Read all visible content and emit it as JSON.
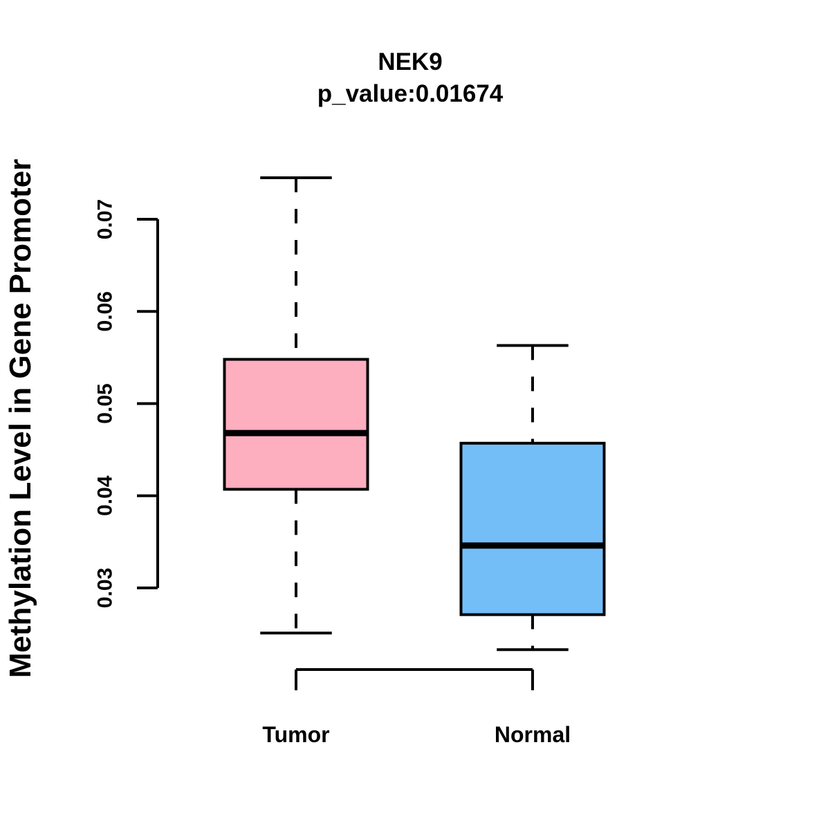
{
  "figure": {
    "background": "#ffffff",
    "foreground": "#000000"
  },
  "chart_data": {
    "type": "boxplot",
    "title": "NEK9",
    "subtitle": "p_value:0.01674",
    "p_value": 0.01674,
    "xlabel": "",
    "ylabel": "Methylation Level in Gene Promoter",
    "categories": [
      "Tumor",
      "Normal"
    ],
    "y_ticks": [
      "0.03",
      "0.04",
      "0.05",
      "0.06",
      "0.07"
    ],
    "ylim": [
      0.03,
      0.07
    ],
    "grid": false,
    "legend": false,
    "series": [
      {
        "name": "Tumor",
        "fill_color": "#FDAEBF",
        "stroke_color": "#000000",
        "whisker_low": 0.0251,
        "q1": 0.0407,
        "median": 0.0468,
        "q3": 0.0548,
        "whisker_high": 0.0745
      },
      {
        "name": "Normal",
        "fill_color": "#74BEF8",
        "stroke_color": "#000000",
        "whisker_low": 0.0233,
        "q1": 0.0271,
        "median": 0.0346,
        "q3": 0.0457,
        "whisker_high": 0.0563
      }
    ]
  }
}
